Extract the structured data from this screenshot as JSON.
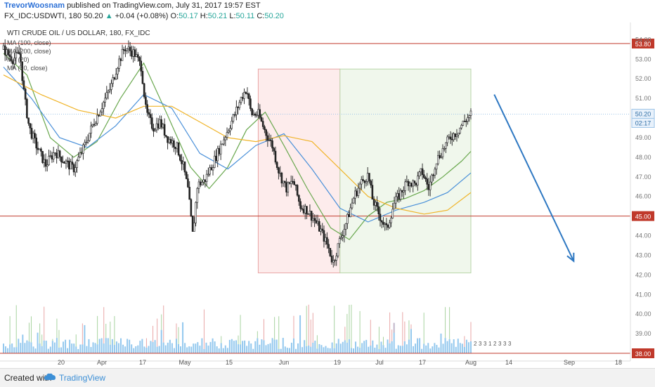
{
  "header": {
    "author": "TrevorWoosnam",
    "published": "published on TradingView.com, July 31, 2017 19:57 EST",
    "symbol": "FX_IDC:USDWTI, 180",
    "last": "50.20",
    "change_arrow": "▲",
    "change": "+0.04 (+0.08%)",
    "o_label": "O:",
    "o_value": "50.17",
    "h_label": "H:",
    "h_value": "50.21",
    "l_label": "L:",
    "l_value": "50.11",
    "c_label": "C:",
    "c_value": "50.20"
  },
  "footer": {
    "created_with": "Created with",
    "brand": "TradingView",
    "logo_icon": "tradingview-cloud-icon"
  },
  "colors": {
    "up_candle": "#26a69a",
    "down_candle": "#ef5350",
    "candle_body": "#222222",
    "ma_green": "#6aa84f",
    "ma_blue": "#4a90d9",
    "ma_orange": "#f0b429",
    "hline": "#c0392b",
    "arrow": "#2e78c2",
    "volume": "#6fb6e8",
    "zone_red": "#fdecec",
    "zone_green": "#f0f7ec"
  },
  "chart_data": {
    "type": "candlestick",
    "title": "WTI CRUDE OIL / US DOLLAR, 180, FX_IDC",
    "legend": [
      "MA (100, close)",
      "MA (200, close)",
      "MA (20)",
      "MA (50, close)"
    ],
    "legend_position": "top-left",
    "x_ticks": [
      "20",
      "Apr",
      "17",
      "May",
      "15",
      "Jun",
      "19",
      "Jul",
      "17",
      "Aug",
      "14",
      "Sep",
      "18"
    ],
    "y_ticks": [
      "38.00",
      "39.00",
      "40.00",
      "41.00",
      "42.00",
      "43.00",
      "44.00",
      "45.00",
      "46.00",
      "47.00",
      "48.00",
      "49.00",
      "50.00",
      "51.00",
      "52.00",
      "53.00",
      "54.00"
    ],
    "ylim": [
      37.9,
      54.8
    ],
    "xlim": [
      0,
      100
    ],
    "grid": false,
    "price_path": [
      [
        0,
        53.5
      ],
      [
        2,
        53.0
      ],
      [
        3.5,
        53.3
      ],
      [
        4.5,
        51.0
      ],
      [
        5.5,
        49.5
      ],
      [
        7,
        48.6
      ],
      [
        9,
        47.6
      ],
      [
        11,
        48.3
      ],
      [
        13,
        47.8
      ],
      [
        15,
        47.4
      ],
      [
        17,
        48.4
      ],
      [
        19,
        49.6
      ],
      [
        21,
        50.6
      ],
      [
        23,
        51.6
      ],
      [
        24.5,
        52.8
      ],
      [
        26,
        53.6
      ],
      [
        28,
        53.3
      ],
      [
        29.5,
        52.6
      ],
      [
        30.5,
        50.3
      ],
      [
        32,
        49.5
      ],
      [
        33.5,
        49.8
      ],
      [
        35,
        49.0
      ],
      [
        37,
        48.6
      ],
      [
        38.5,
        47.5
      ],
      [
        39.5,
        46.3
      ],
      [
        40.5,
        44.0
      ],
      [
        41.5,
        46.6
      ],
      [
        43,
        46.8
      ],
      [
        45,
        47.8
      ],
      [
        46.5,
        48.6
      ],
      [
        48,
        49.4
      ],
      [
        49.5,
        50.2
      ],
      [
        51,
        51.1
      ],
      [
        52,
        51.5
      ],
      [
        53,
        50.2
      ],
      [
        54.5,
        50.2
      ],
      [
        56,
        49.3
      ],
      [
        57.5,
        48.6
      ],
      [
        59,
        47.2
      ],
      [
        60.5,
        46.4
      ],
      [
        62,
        46.8
      ],
      [
        63.5,
        45.5
      ],
      [
        65,
        45.3
      ],
      [
        66.5,
        44.8
      ],
      [
        68,
        44.2
      ],
      [
        69.5,
        43.4
      ],
      [
        70.5,
        42.6
      ],
      [
        72,
        43.8
      ],
      [
        73.5,
        44.8
      ],
      [
        75,
        46.0
      ],
      [
        76.5,
        46.7
      ],
      [
        78,
        47.1
      ],
      [
        79,
        45.8
      ],
      [
        80.5,
        45.0
      ],
      [
        82,
        44.3
      ],
      [
        83.5,
        45.6
      ],
      [
        85,
        46.2
      ],
      [
        86.5,
        46.8
      ],
      [
        88,
        46.6
      ],
      [
        89.5,
        47.3
      ],
      [
        91,
        46.4
      ],
      [
        92.5,
        47.8
      ],
      [
        94,
        48.4
      ],
      [
        95.5,
        49.0
      ],
      [
        97,
        49.3
      ],
      [
        98.5,
        49.8
      ],
      [
        100,
        50.2
      ]
    ],
    "moving_averages": [
      {
        "name": "MA (20)",
        "color": "#6aa84f",
        "values": [
          [
            0,
            53.3
          ],
          [
            5,
            52.2
          ],
          [
            10,
            49.0
          ],
          [
            15,
            48.0
          ],
          [
            20,
            48.8
          ],
          [
            25,
            51.0
          ],
          [
            30,
            52.8
          ],
          [
            35,
            50.2
          ],
          [
            40,
            47.5
          ],
          [
            44,
            46.4
          ],
          [
            48,
            47.5
          ],
          [
            52,
            49.4
          ],
          [
            56,
            50.3
          ],
          [
            60,
            48.6
          ],
          [
            65,
            46.4
          ],
          [
            70,
            44.4
          ],
          [
            74,
            43.8
          ],
          [
            78,
            45.0
          ],
          [
            82,
            45.7
          ],
          [
            86,
            45.9
          ],
          [
            90,
            46.3
          ],
          [
            94,
            47.0
          ],
          [
            98,
            47.8
          ],
          [
            100,
            48.3
          ]
        ]
      },
      {
        "name": "MA (50, close)",
        "color": "#4a90d9",
        "values": [
          [
            0,
            52.6
          ],
          [
            6,
            51.0
          ],
          [
            12,
            49.0
          ],
          [
            18,
            48.5
          ],
          [
            24,
            49.6
          ],
          [
            30,
            51.2
          ],
          [
            36,
            50.5
          ],
          [
            42,
            48.2
          ],
          [
            48,
            47.4
          ],
          [
            54,
            48.6
          ],
          [
            60,
            49.2
          ],
          [
            66,
            47.4
          ],
          [
            72,
            45.4
          ],
          [
            78,
            44.7
          ],
          [
            84,
            45.3
          ],
          [
            90,
            45.7
          ],
          [
            95,
            46.2
          ],
          [
            100,
            47.2
          ]
        ]
      },
      {
        "name": "MA (100, close)",
        "color": "#f0b429",
        "values": [
          [
            0,
            52.2
          ],
          [
            8,
            51.2
          ],
          [
            16,
            50.4
          ],
          [
            24,
            50.0
          ],
          [
            30,
            50.6
          ],
          [
            36,
            50.6
          ],
          [
            42,
            49.8
          ],
          [
            48,
            49.0
          ],
          [
            54,
            48.8
          ],
          [
            60,
            49.1
          ],
          [
            66,
            48.8
          ],
          [
            72,
            47.4
          ],
          [
            78,
            46.0
          ],
          [
            84,
            45.4
          ],
          [
            90,
            45.1
          ],
          [
            95,
            45.3
          ],
          [
            100,
            46.2
          ]
        ]
      },
      {
        "name": "MA (200, close)",
        "color": "#8a8a8a",
        "values": []
      }
    ],
    "horizontal_lines": [
      {
        "value": 53.8,
        "label": "53.80"
      },
      {
        "value": 45.0,
        "label": "45.00"
      },
      {
        "value": 38.0,
        "label": "38.00"
      }
    ],
    "last_price_label": "50.20",
    "countdown_label": "02:17",
    "zones": [
      {
        "type": "sell",
        "x0": 54.5,
        "x1": 72,
        "y_top": 52.5,
        "y_bottom": 42.1
      },
      {
        "type": "buy",
        "x0": 72,
        "x1": 100,
        "y_top": 52.5,
        "y_bottom": 42.1
      }
    ],
    "projection_arrow": {
      "from": [
        105,
        51.2
      ],
      "to": [
        122,
        42.7
      ]
    },
    "volume_note": "volume histogram along bottom of chart",
    "event_labels": [
      "2",
      "3",
      "3",
      "1",
      "2",
      "3",
      "3",
      "3"
    ]
  }
}
